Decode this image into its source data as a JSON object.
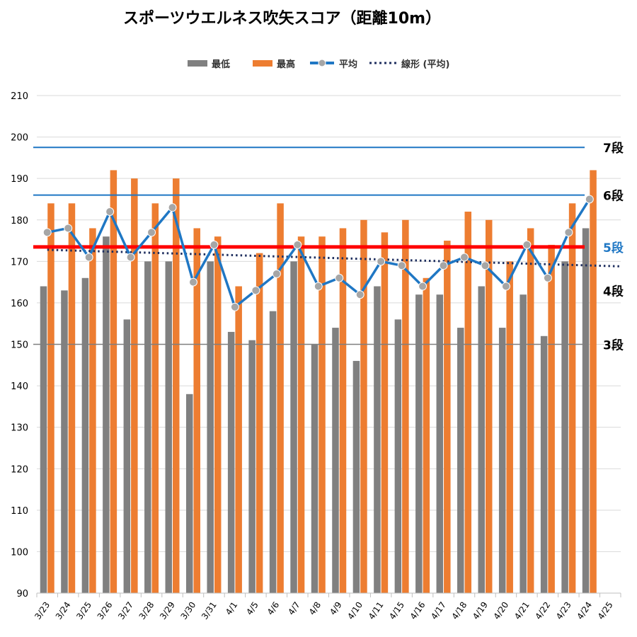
{
  "chart_data": {
    "type": "bar",
    "title": "スポーツウエルネス吹矢スコア（距離10m）",
    "xlabel": "",
    "ylabel": "",
    "ylim": [
      90,
      210
    ],
    "yticks": [
      90,
      100,
      110,
      120,
      130,
      140,
      150,
      160,
      170,
      180,
      190,
      200,
      210
    ],
    "grid": true,
    "legend_position": "top",
    "categories": [
      "3/23",
      "3/24",
      "3/25",
      "3/26",
      "3/27",
      "3/28",
      "3/29",
      "3/30",
      "3/31",
      "4/1",
      "4/5",
      "4/6",
      "4/7",
      "4/8",
      "4/9",
      "4/10",
      "4/11",
      "4/15",
      "4/16",
      "4/17",
      "4/18",
      "4/19",
      "4/20",
      "4/21",
      "4/22",
      "4/23",
      "4/24",
      "4/25"
    ],
    "series": [
      {
        "name": "最低",
        "type": "bar",
        "color": "#808080",
        "values": [
          164,
          163,
          166,
          176,
          156,
          170,
          170,
          138,
          170,
          153,
          151,
          158,
          170,
          150,
          154,
          146,
          164,
          156,
          162,
          162,
          154,
          164,
          154,
          162,
          152,
          170,
          178,
          null
        ]
      },
      {
        "name": "最高",
        "type": "bar",
        "color": "#ED7D31",
        "values": [
          184,
          184,
          178,
          192,
          190,
          184,
          190,
          178,
          176,
          164,
          172,
          184,
          176,
          176,
          178,
          180,
          177,
          180,
          166,
          175,
          182,
          180,
          170,
          178,
          174,
          184,
          192,
          null
        ]
      },
      {
        "name": "平均",
        "type": "line",
        "color": "#1F77C4",
        "values": [
          177,
          178,
          171,
          182,
          171,
          177,
          183,
          165,
          174,
          159,
          163,
          167,
          174,
          164,
          166,
          162,
          170,
          169,
          164,
          169,
          171,
          169,
          164,
          174,
          166,
          177,
          185,
          null
        ]
      },
      {
        "name": "線形 (平均)",
        "type": "trendline",
        "color": "#1F2F5F",
        "from": {
          "category": "3/23",
          "value": 172.8
        },
        "to": {
          "category": "4/25",
          "value": 168.8
        }
      }
    ],
    "reference_lines": [
      {
        "label": "7段",
        "value": 197.5,
        "color": "#1F77C4",
        "label_color": "#000000"
      },
      {
        "label": "6段",
        "value": 186,
        "color": "#1F77C4",
        "label_color": "#000000"
      },
      {
        "label": "5段",
        "value": 173.5,
        "color": "#FF0000",
        "label_color": "#1F77C4"
      },
      {
        "label": "4段",
        "value": null,
        "color": null,
        "label_color": "#000000",
        "label_value": 163
      },
      {
        "label": "3段",
        "value": 150,
        "color": "#7F7F7F",
        "label_color": "#000000"
      }
    ]
  }
}
